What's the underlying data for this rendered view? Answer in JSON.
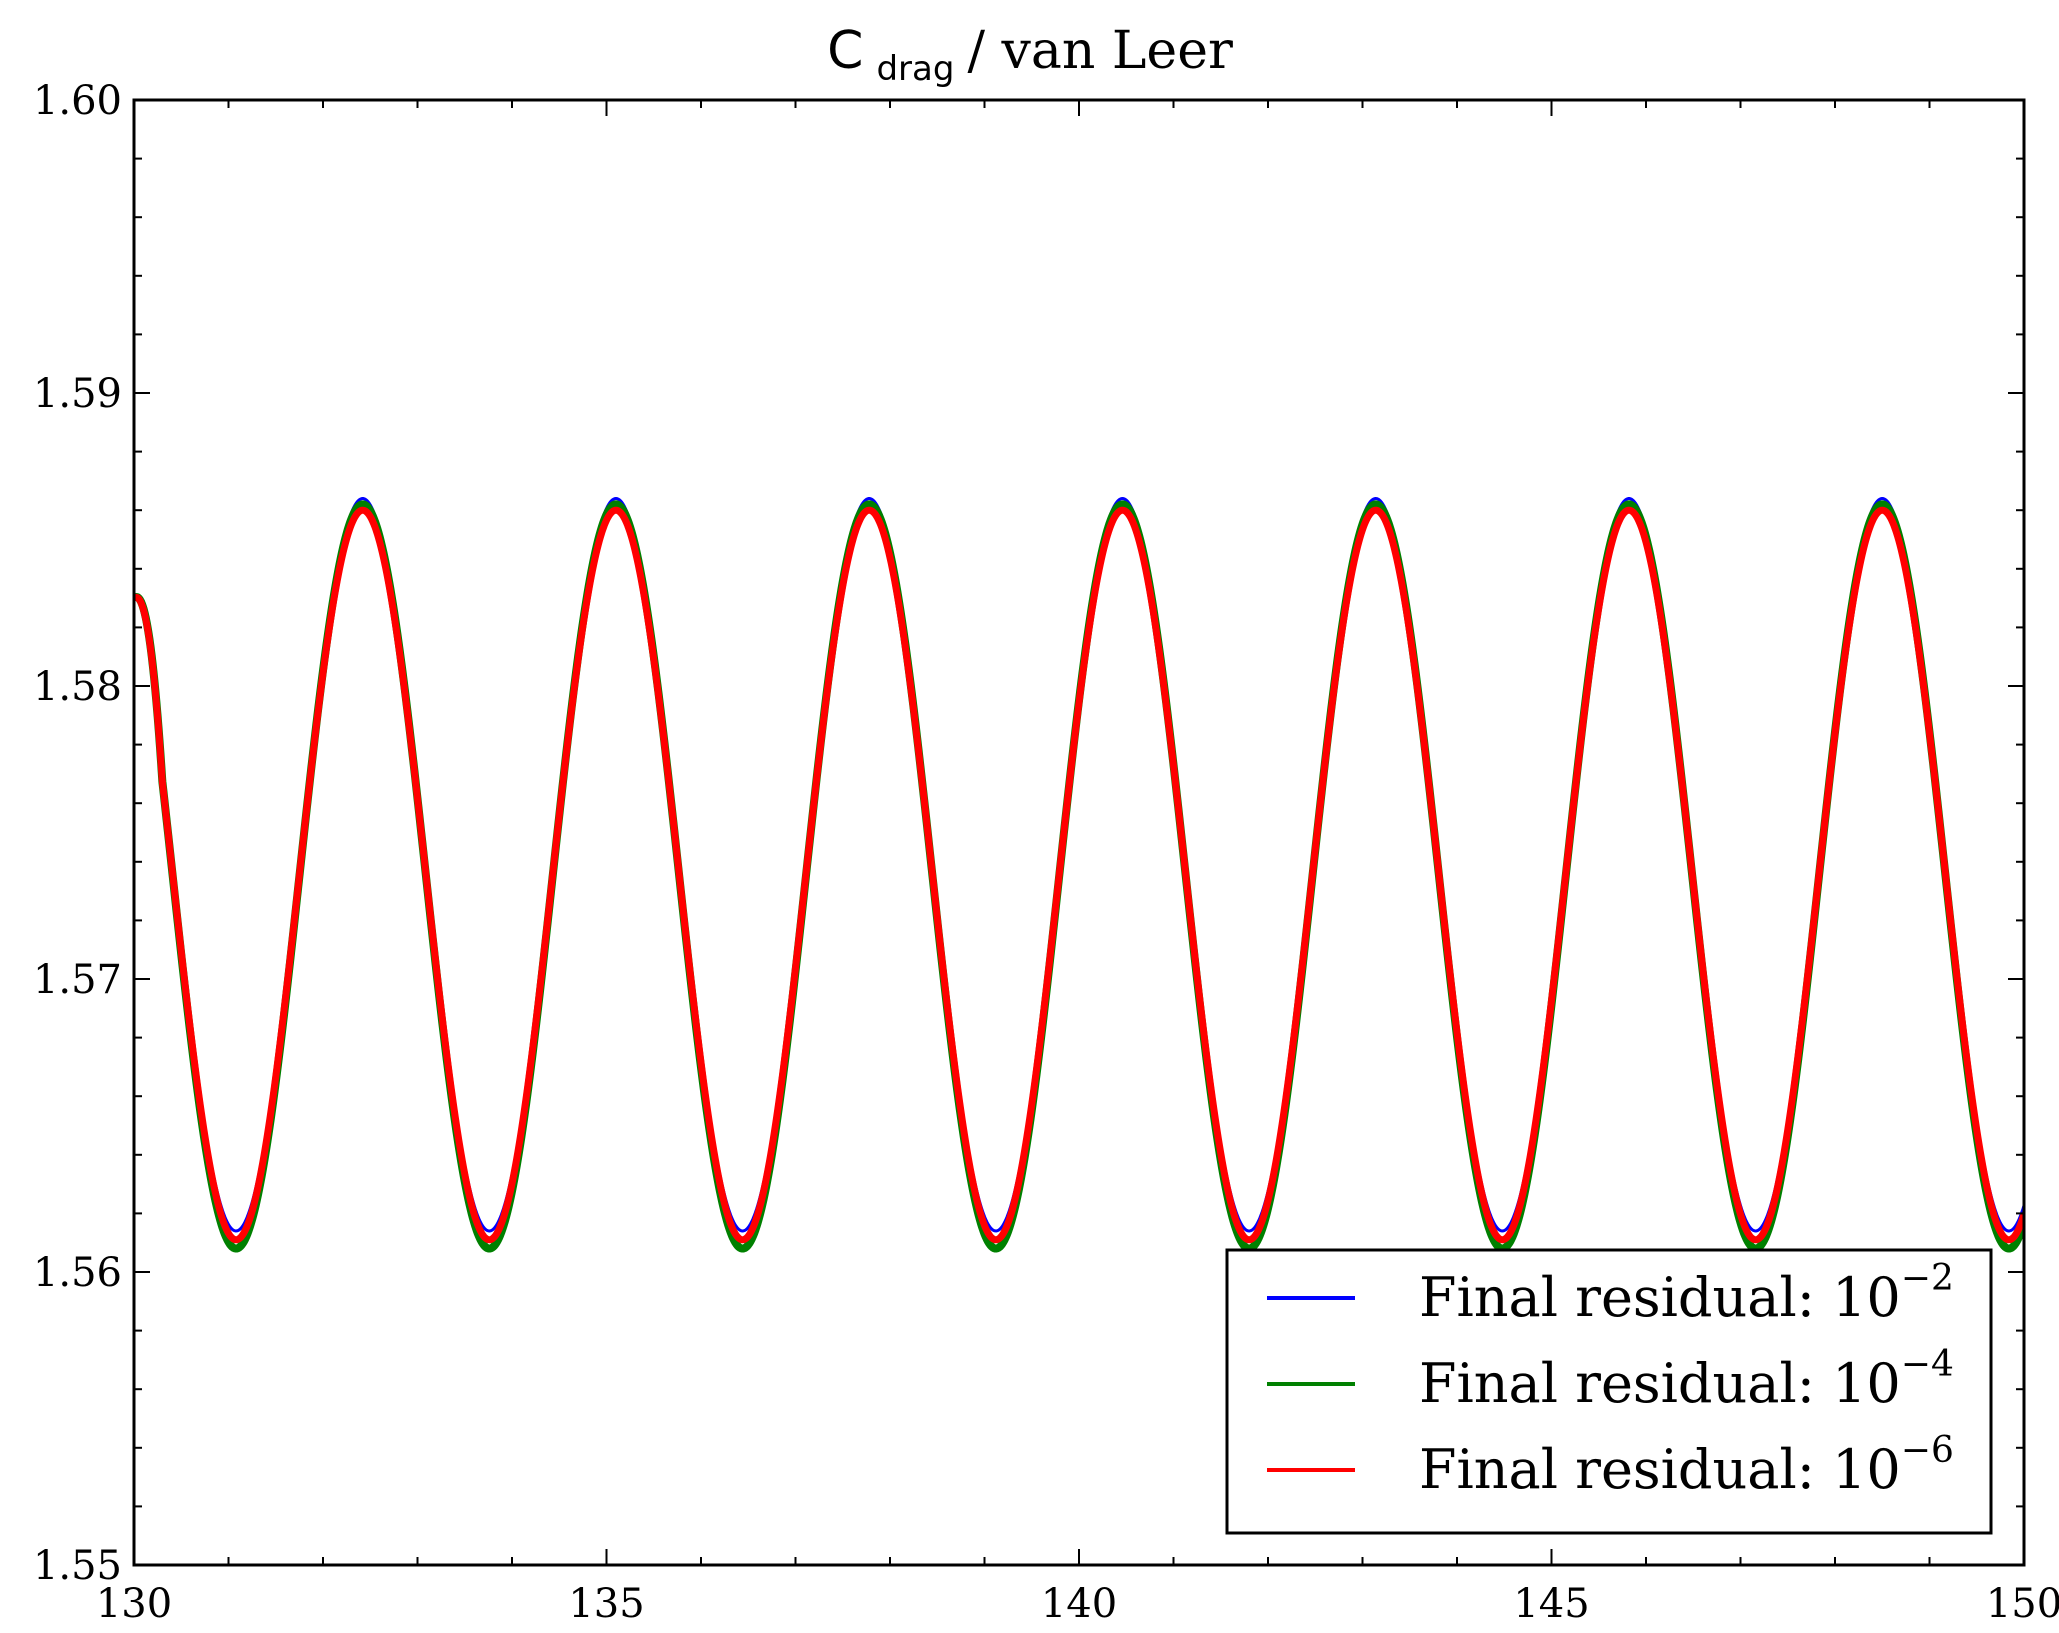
{
  "chart_data": {
    "type": "line",
    "title": {
      "symbol": "C",
      "subscript": "drag",
      "rest": " / van Leer"
    },
    "xlabel": "",
    "ylabel": "",
    "xlim": [
      130,
      150
    ],
    "ylim": [
      1.55,
      1.6
    ],
    "x_ticks": [
      130,
      135,
      140,
      145,
      150
    ],
    "x_tick_labels": [
      "130",
      "135",
      "140",
      "145",
      "150"
    ],
    "x_minor_step": 1,
    "y_ticks": [
      1.55,
      1.56,
      1.57,
      1.58,
      1.59,
      1.6
    ],
    "y_tick_labels": [
      "1.55",
      "1.56",
      "1.57",
      "1.58",
      "1.59",
      "1.60"
    ],
    "y_minor_step": 0.002,
    "grid": false,
    "legend_position": "lower-right",
    "oscillation": {
      "description": "periodic oscillation of drag coefficient",
      "period": 2.68,
      "first_peak_x": 132.42,
      "start_x": 130,
      "start_y": 1.583
    },
    "series": [
      {
        "name": "blue",
        "label": "Final residual: ",
        "exponent": "−2",
        "color": "#0000ff",
        "peak": 1.5864,
        "trough": 1.5614,
        "line_width": 3
      },
      {
        "name": "green",
        "label": "Final residual: ",
        "exponent": "−4",
        "color": "#008000",
        "peak": 1.5862,
        "trough": 1.5608,
        "line_width": 8
      },
      {
        "name": "red",
        "label": "Final residual: ",
        "exponent": "−6",
        "color": "#ff0000",
        "peak": 1.586,
        "trough": 1.5611,
        "line_width": 7
      }
    ],
    "legend_base": "10"
  }
}
